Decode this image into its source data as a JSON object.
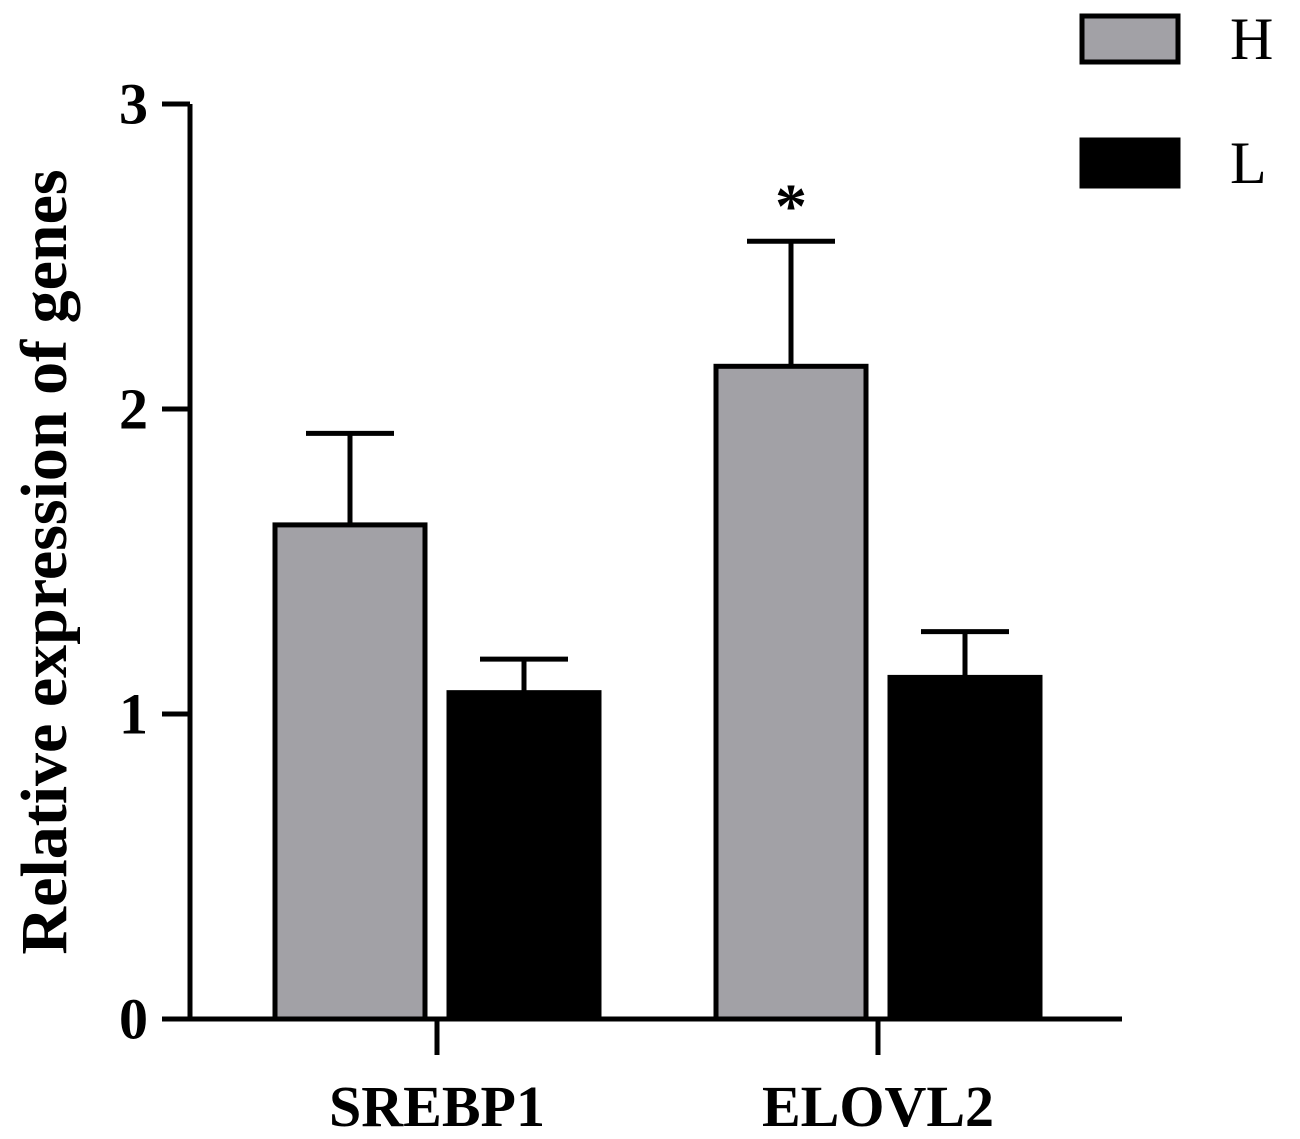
{
  "chart_data": {
    "type": "bar",
    "ylabel": "Relative expression of genes",
    "xlabel": "",
    "ylim": [
      0,
      3
    ],
    "yticks": [
      0,
      1,
      2,
      3
    ],
    "categories": [
      "SREBP1",
      "ELOVL2"
    ],
    "series": [
      {
        "name": "H",
        "color": "#a2a1a6",
        "values": [
          1.62,
          2.14
        ],
        "errors": [
          0.3,
          0.41
        ]
      },
      {
        "name": "L",
        "color": "#000000",
        "values": [
          1.07,
          1.12
        ],
        "errors": [
          0.11,
          0.15
        ]
      }
    ],
    "annotations": [
      {
        "category": "ELOVL2",
        "series": "H",
        "text": "*"
      }
    ],
    "legend_position": "top-right",
    "grid": false
  }
}
